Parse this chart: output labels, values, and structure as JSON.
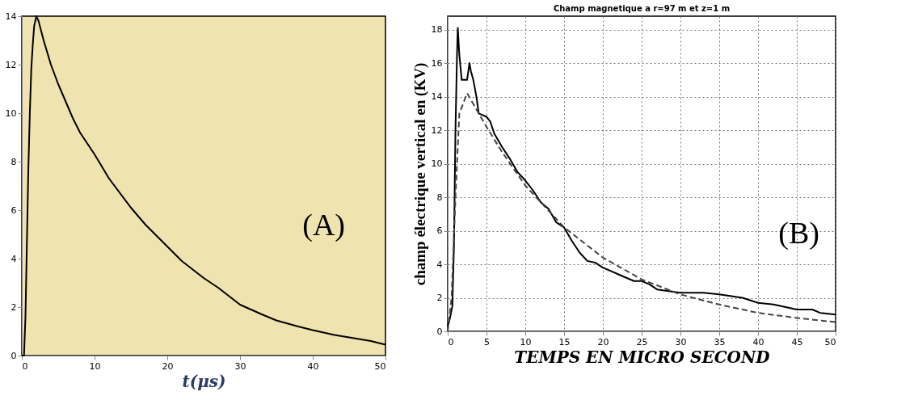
{
  "chart_data": [
    {
      "type": "line",
      "xlabel": "t(μs)",
      "xlim": [
        0,
        50
      ],
      "xticks": [
        0,
        10,
        20,
        30,
        40,
        50
      ],
      "ylim": [
        0,
        14
      ],
      "yticks": [
        0,
        2,
        4,
        6,
        8,
        10,
        12,
        14
      ],
      "grid": false,
      "annotations": [
        "(A)"
      ],
      "series": [
        {
          "color": "#000000",
          "line_style": "solid",
          "x": [
            0,
            0.3,
            0.5,
            0.7,
            0.9,
            1.1,
            1.3,
            1.5,
            1.7,
            2.0,
            2.3,
            3,
            4,
            5,
            6,
            7,
            8,
            10,
            12,
            15,
            17,
            20,
            22,
            25,
            27,
            30,
            33,
            35,
            38,
            40,
            43,
            45,
            48,
            50
          ],
          "values": [
            0,
            0,
            1.6,
            4.7,
            7.7,
            10,
            11.8,
            12.8,
            13.6,
            14,
            13.8,
            13,
            12,
            11.2,
            10.5,
            9.8,
            9.2,
            8.3,
            7.3,
            6.1,
            5.4,
            4.5,
            3.9,
            3.2,
            2.8,
            2.1,
            1.7,
            1.45,
            1.2,
            1.05,
            0.85,
            0.75,
            0.6,
            0.45
          ]
        }
      ]
    },
    {
      "type": "line",
      "title": "Champ magnetique a r=97 m et z=1 m",
      "xlabel": "TEMPS EN MICRO SECOND",
      "ylabel": "champ électrique vertical en (KV)",
      "xlim": [
        0,
        50
      ],
      "xticks": [
        0,
        5,
        10,
        15,
        20,
        25,
        30,
        35,
        40,
        45,
        50
      ],
      "ylim": [
        0,
        18.8
      ],
      "yticks": [
        0,
        2,
        4,
        6,
        8,
        10,
        12,
        14,
        16,
        18
      ],
      "grid": true,
      "annotations": [
        "(B)"
      ],
      "series": [
        {
          "color": "#000000",
          "line_style": "solid",
          "x": [
            0,
            0.3,
            0.6,
            0.8,
            1.0,
            1.2,
            1.3,
            1.5,
            1.8,
            2.0,
            2.5,
            2.8,
            3.0,
            3.3,
            3.7,
            4,
            5,
            5.5,
            6,
            7,
            8,
            9,
            10,
            11,
            12,
            13,
            14,
            15,
            16,
            17,
            18,
            19,
            20,
            22,
            24,
            25,
            26,
            27,
            30,
            33,
            35,
            38,
            40,
            42,
            45,
            47,
            48,
            50
          ],
          "values": [
            0.3,
            0.8,
            1.5,
            5,
            12,
            16.5,
            18.1,
            16.5,
            15,
            15,
            15,
            16,
            15.5,
            15,
            14,
            13,
            12.8,
            12.5,
            11.8,
            11,
            10.3,
            9.5,
            9,
            8.4,
            7.7,
            7.3,
            6.5,
            6.2,
            5.4,
            4.7,
            4.2,
            4.1,
            3.8,
            3.4,
            3.0,
            3.0,
            2.8,
            2.5,
            2.3,
            2.3,
            2.2,
            2.0,
            1.7,
            1.6,
            1.3,
            1.3,
            1.1,
            1.0
          ]
        },
        {
          "color": "#444444",
          "line_style": "dashed",
          "x": [
            0,
            0.5,
            1,
            1.5,
            2.5,
            3,
            5,
            7,
            10,
            15,
            20,
            25,
            30,
            35,
            40,
            45,
            50
          ],
          "values": [
            0,
            2,
            8,
            13,
            14.2,
            13.8,
            12.2,
            10.7,
            8.7,
            6.2,
            4.4,
            3.1,
            2.2,
            1.6,
            1.1,
            0.8,
            0.55
          ]
        }
      ]
    }
  ]
}
